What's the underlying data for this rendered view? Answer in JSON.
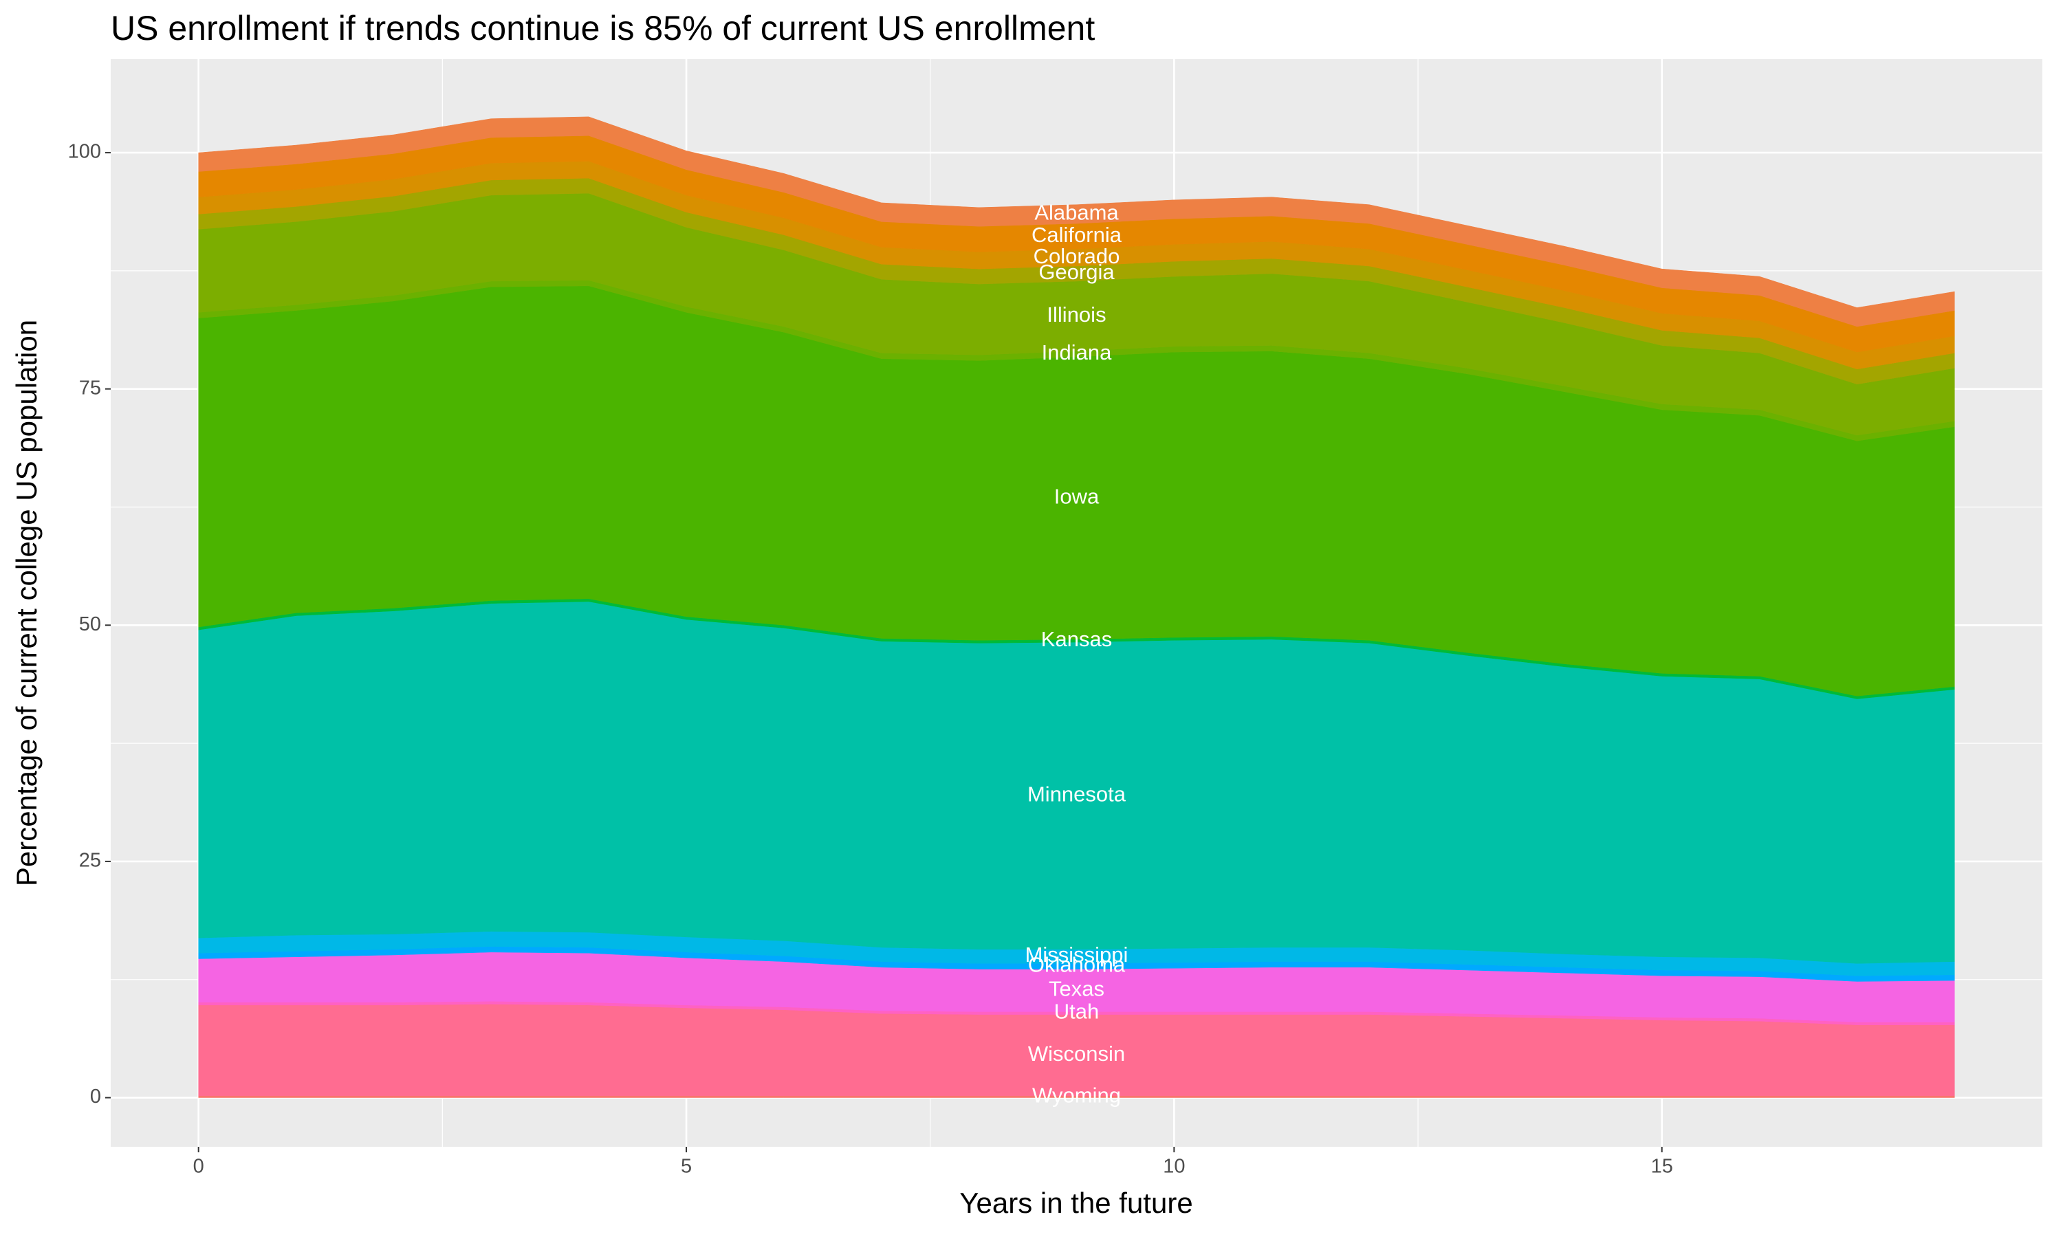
{
  "chart_data": {
    "type": "stacked_area",
    "title": "US enrollment if trends continue is 85% of current US enrollment",
    "x_label": "Years in the future",
    "y_label": "Percentage of current college US population",
    "x": [
      0,
      1,
      2,
      3,
      4,
      5,
      6,
      7,
      8,
      9,
      10,
      11,
      12,
      13,
      14,
      15,
      16,
      17,
      18
    ],
    "xlim": [
      -0.9,
      18.9
    ],
    "xticks": [
      0,
      5,
      10,
      15
    ],
    "ylim": [
      -5.2,
      109.9
    ],
    "yticks": [
      0,
      25,
      50,
      75,
      100
    ],
    "grid": true,
    "series": [
      {
        "name": "Wyoming",
        "color": "#F8766D",
        "values": [
          0.2,
          0.2,
          0.2,
          0.2,
          0.2,
          0.2,
          0.2,
          0.2,
          0.2,
          0.2,
          0.2,
          0.2,
          0.2,
          0.2,
          0.2,
          0.2,
          0.2,
          0.2,
          0.2
        ]
      },
      {
        "name": "Wisconsin",
        "color": "#FF6C91",
        "values": [
          9.6,
          9.6,
          9.6,
          9.7,
          9.6,
          9.3,
          9.1,
          8.7,
          8.6,
          8.6,
          8.6,
          8.6,
          8.6,
          8.4,
          8.2,
          8.0,
          7.9,
          7.5,
          7.5
        ]
      },
      {
        "name": "Utah",
        "color": "#FF61C3",
        "values": [
          0.3,
          0.3,
          0.3,
          0.3,
          0.3,
          0.3,
          0.3,
          0.3,
          0.3,
          0.3,
          0.3,
          0.3,
          0.3,
          0.3,
          0.3,
          0.3,
          0.3,
          0.3,
          0.3
        ]
      },
      {
        "name": "Texas",
        "color": "#F564E3",
        "values": [
          4.6,
          4.8,
          5.0,
          5.2,
          5.2,
          5.0,
          4.8,
          4.6,
          4.5,
          4.5,
          4.6,
          4.7,
          4.7,
          4.6,
          4.5,
          4.4,
          4.4,
          4.3,
          4.4
        ]
      },
      {
        "name": "Oklahoma",
        "color": "#00A9FF",
        "values": [
          0.6,
          0.6,
          0.6,
          0.6,
          0.6,
          0.6,
          0.6,
          0.6,
          0.6,
          0.6,
          0.6,
          0.6,
          0.6,
          0.6,
          0.6,
          0.6,
          0.6,
          0.6,
          0.6
        ]
      },
      {
        "name": "Mississippi",
        "color": "#00B8E7",
        "values": [
          1.6,
          1.7,
          1.6,
          1.6,
          1.6,
          1.6,
          1.6,
          1.5,
          1.5,
          1.5,
          1.5,
          1.5,
          1.5,
          1.5,
          1.4,
          1.4,
          1.4,
          1.3,
          1.4
        ]
      },
      {
        "name": "Minnesota",
        "color": "#00C1A7",
        "values": [
          32.6,
          33.8,
          34.2,
          34.7,
          35.0,
          33.6,
          33.1,
          32.4,
          32.4,
          32.5,
          32.6,
          32.6,
          32.2,
          31.2,
          30.4,
          29.7,
          29.5,
          28.0,
          28.8
        ]
      },
      {
        "name": "Kansas",
        "color": "#00BA38",
        "values": [
          0.3,
          0.3,
          0.3,
          0.3,
          0.3,
          0.3,
          0.3,
          0.3,
          0.3,
          0.3,
          0.3,
          0.3,
          0.3,
          0.3,
          0.3,
          0.3,
          0.3,
          0.3,
          0.3
        ]
      },
      {
        "name": "Iowa",
        "color": "#4BB400",
        "values": [
          32.7,
          32.0,
          32.5,
          33.2,
          33.1,
          32.2,
          31.0,
          29.6,
          29.6,
          29.9,
          30.2,
          30.2,
          29.8,
          29.5,
          28.8,
          27.9,
          27.6,
          27.0,
          27.5
        ]
      },
      {
        "name": "Indiana",
        "color": "#6BB100",
        "values": [
          0.6,
          0.6,
          0.6,
          0.6,
          0.6,
          0.6,
          0.6,
          0.6,
          0.6,
          0.6,
          0.6,
          0.6,
          0.6,
          0.6,
          0.6,
          0.6,
          0.6,
          0.6,
          0.6
        ]
      },
      {
        "name": "Illinois",
        "color": "#7CAE00",
        "values": [
          8.8,
          8.8,
          8.9,
          9.1,
          9.2,
          8.4,
          8.1,
          7.8,
          7.5,
          7.4,
          7.4,
          7.6,
          7.6,
          7.0,
          6.7,
          6.2,
          6.0,
          5.4,
          5.6
        ]
      },
      {
        "name": "Georgia",
        "color": "#A3A500",
        "values": [
          1.6,
          1.6,
          1.6,
          1.6,
          1.6,
          1.6,
          1.6,
          1.6,
          1.6,
          1.6,
          1.6,
          1.6,
          1.6,
          1.6,
          1.6,
          1.6,
          1.6,
          1.6,
          1.6
        ]
      },
      {
        "name": "Colorado",
        "color": "#D89000",
        "values": [
          1.8,
          1.8,
          1.8,
          1.8,
          1.8,
          1.8,
          1.8,
          1.8,
          1.8,
          1.8,
          1.8,
          1.8,
          1.8,
          1.8,
          1.8,
          1.8,
          1.8,
          1.8,
          1.8
        ]
      },
      {
        "name": "California",
        "color": "#E58700",
        "values": [
          2.7,
          2.7,
          2.7,
          2.7,
          2.7,
          2.7,
          2.7,
          2.7,
          2.7,
          2.7,
          2.7,
          2.7,
          2.7,
          2.7,
          2.7,
          2.7,
          2.7,
          2.7,
          2.7
        ]
      },
      {
        "name": "Alabama",
        "color": "#EE8044",
        "values": [
          2.0,
          2.0,
          2.0,
          2.0,
          2.0,
          2.0,
          2.0,
          2.0,
          2.0,
          2.0,
          2.0,
          2.0,
          2.0,
          2.0,
          2.0,
          2.0,
          2.0,
          2.0,
          2.0
        ]
      }
    ]
  }
}
